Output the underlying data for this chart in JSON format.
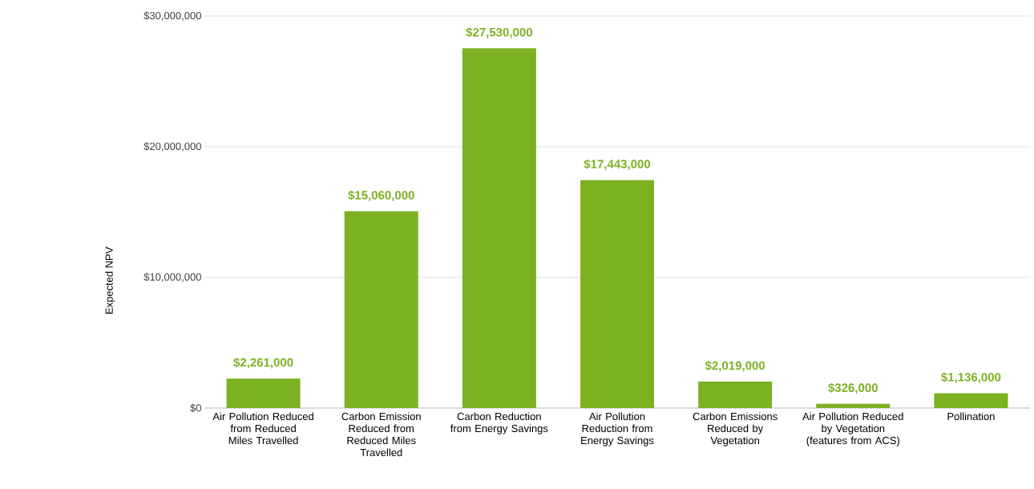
{
  "chart_data": {
    "type": "bar",
    "ylabel": "Expected NPV",
    "categories": [
      "Air Pollution Reduced from Reduced Miles Travelled",
      "Carbon Emission Reduced from Reduced Miles Travelled",
      "Carbon Reduction from Energy Savings",
      "Air Pollution Reduction from Energy Savings",
      "Carbon Emissions Reduced by Vegetation",
      "Air Pollution Reduced by Vegetation (features from ACS)",
      "Pollination"
    ],
    "values": [
      2261000,
      15060000,
      27530000,
      17443000,
      2019000,
      326000,
      1136000
    ],
    "value_labels": [
      "$2,261,000",
      "$15,060,000",
      "$27,530,000",
      "$17,443,000",
      "$2,019,000",
      "$326,000",
      "$1,136,000"
    ],
    "color": "#7cb122",
    "ylim": [
      0,
      30000000
    ],
    "yticks": [
      {
        "value": 0,
        "label": "$0"
      },
      {
        "value": 10000000,
        "label": "$10,000,000"
      },
      {
        "value": 20000000,
        "label": "$20,000,000"
      },
      {
        "value": 30000000,
        "label": "$30,000,000"
      }
    ],
    "grid": "y"
  }
}
